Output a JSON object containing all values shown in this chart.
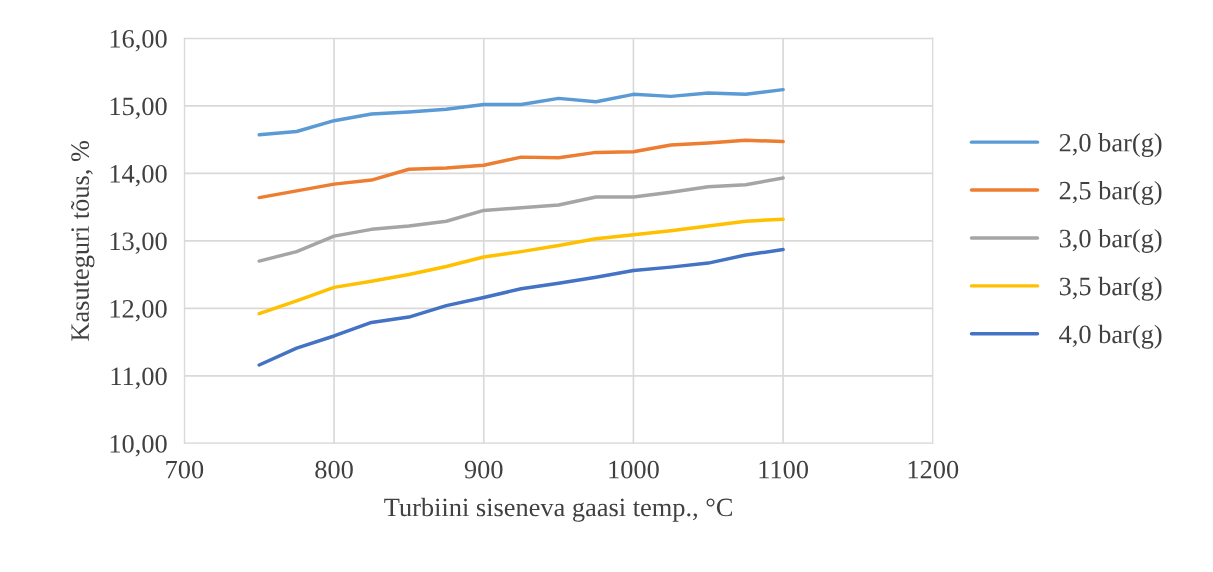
{
  "chart_data": {
    "type": "line",
    "xlabel": "Turbiini siseneva gaasi temp., °C",
    "ylabel": "Kasuteguri tõus, %",
    "x": [
      750,
      775,
      800,
      825,
      850,
      875,
      900,
      925,
      950,
      975,
      1000,
      1025,
      1050,
      1075,
      1100
    ],
    "series": [
      {
        "name": "2,0 bar(g)",
        "color": "#5b9bd5",
        "values": [
          14.57,
          14.62,
          14.78,
          14.88,
          14.91,
          14.95,
          15.02,
          15.02,
          15.11,
          15.06,
          15.17,
          15.14,
          15.19,
          15.17,
          15.24
        ]
      },
      {
        "name": "2,5 bar(g)",
        "color": "#ed7d31",
        "values": [
          13.64,
          13.74,
          13.84,
          13.9,
          14.06,
          14.08,
          14.12,
          14.24,
          14.23,
          14.31,
          14.32,
          14.42,
          14.45,
          14.49,
          14.47
        ]
      },
      {
        "name": "3,0 bar(g)",
        "color": "#a5a5a5",
        "values": [
          12.7,
          12.84,
          13.07,
          13.17,
          13.22,
          13.29,
          13.45,
          13.49,
          13.53,
          13.65,
          13.65,
          13.72,
          13.8,
          13.83,
          13.93
        ]
      },
      {
        "name": "3,5 bar(g)",
        "color": "#ffc000",
        "values": [
          11.92,
          12.11,
          12.31,
          12.4,
          12.5,
          12.62,
          12.76,
          12.84,
          12.93,
          13.03,
          13.09,
          13.15,
          13.22,
          13.29,
          13.32
        ]
      },
      {
        "name": "4,0 bar(g)",
        "color": "#4472c4",
        "values": [
          11.16,
          11.41,
          11.59,
          11.79,
          11.87,
          12.04,
          12.16,
          12.29,
          12.37,
          12.46,
          12.56,
          12.61,
          12.67,
          12.79,
          12.87
        ]
      }
    ],
    "xlim": [
      700,
      1200
    ],
    "xticks": [
      700,
      800,
      900,
      1000,
      1100,
      1200
    ],
    "ylim": [
      10,
      16
    ],
    "yticks": [
      {
        "value": 10,
        "label": "10,00"
      },
      {
        "value": 11,
        "label": "11,00"
      },
      {
        "value": 12,
        "label": "12,00"
      },
      {
        "value": 13,
        "label": "13,00"
      },
      {
        "value": 14,
        "label": "14,00"
      },
      {
        "value": 15,
        "label": "15,00"
      },
      {
        "value": 16,
        "label": "16,00"
      }
    ],
    "grid": true,
    "legend": "right",
    "marker": "none",
    "line_style": "solid"
  }
}
